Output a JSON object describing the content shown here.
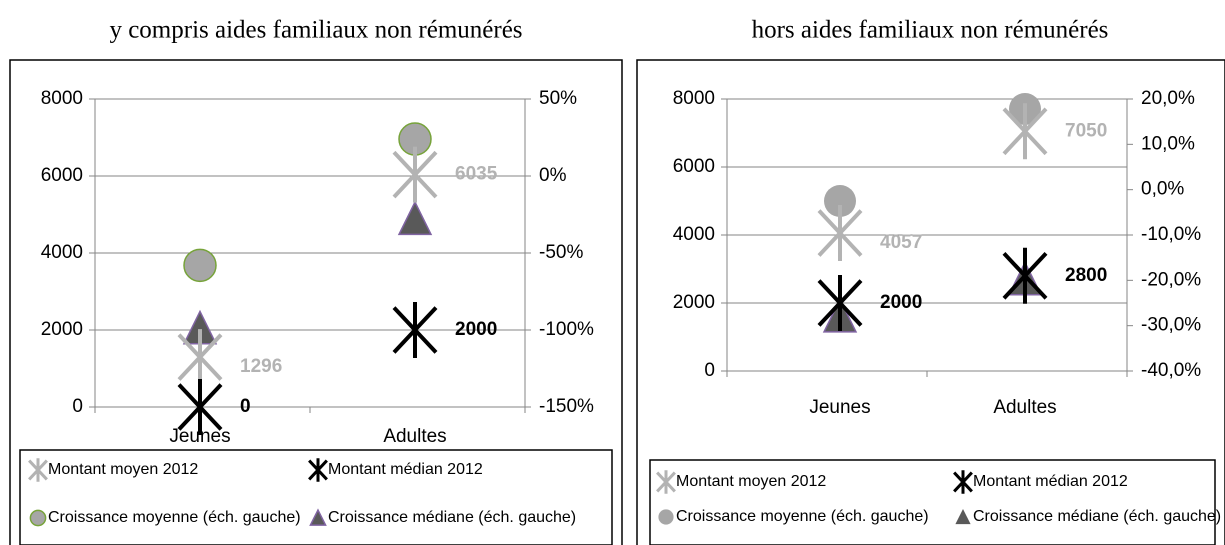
{
  "chart_data": [
    {
      "type": "scatter",
      "title": "y compris aides familiaux non rémunérés",
      "categories": [
        "Jeunes",
        "Adultes"
      ],
      "ylim": [
        0,
        8000
      ],
      "yticks": [
        0,
        2000,
        4000,
        6000,
        8000
      ],
      "y2lim": [
        -150,
        50
      ],
      "y2ticks": [
        {
          "value": -150,
          "label": "-150%"
        },
        {
          "value": -100,
          "label": "-100%"
        },
        {
          "value": -50,
          "label": "-50%"
        },
        {
          "value": 0,
          "label": "0%"
        },
        {
          "value": 50,
          "label": "50%"
        }
      ],
      "grid": true,
      "series": [
        {
          "name": "Croissance moyenne (éch. gauche)",
          "color": "#a6a6a6",
          "marker": "circle",
          "axis": "y2",
          "values": [
            -58,
            24
          ]
        },
        {
          "name": "Croissance médiane (éch. gauche)",
          "color": "#595959",
          "marker": "triangle",
          "axis": "y2",
          "values": [
            -99,
            -28
          ]
        },
        {
          "name": "Montant moyen 2012",
          "color": "#b3b3b3",
          "marker": "asterisk",
          "values": [
            1296,
            6035
          ]
        },
        {
          "name": "Montant médian 2012",
          "color": "#000000",
          "marker": "asterisk",
          "values": [
            0,
            2000
          ]
        }
      ]
    },
    {
      "type": "scatter",
      "title": "hors aides familiaux non rémunérés",
      "categories": [
        "Jeunes",
        "Adultes"
      ],
      "ylim": [
        0,
        8000
      ],
      "yticks": [
        0,
        2000,
        4000,
        6000,
        8000
      ],
      "y2lim": [
        -40,
        20
      ],
      "y2ticks": [
        {
          "value": -40,
          "label": "-40,0%"
        },
        {
          "value": -30,
          "label": "-30,0%"
        },
        {
          "value": -20,
          "label": "-20,0%"
        },
        {
          "value": -10,
          "label": "-10,0%"
        },
        {
          "value": 0,
          "label": "0,0%"
        },
        {
          "value": 10,
          "label": "10,0%"
        },
        {
          "value": 20,
          "label": "20,0%"
        }
      ],
      "grid": true,
      "series": [
        {
          "name": "Croissance moyenne (éch. gauche)",
          "color": "#a6a6a6",
          "marker": "circle",
          "axis": "y2",
          "values": [
            -2.5,
            17.8
          ]
        },
        {
          "name": "Croissance médiane (éch. gauche)",
          "color": "#595959",
          "marker": "triangle",
          "axis": "y2",
          "values": [
            -28,
            -19.8
          ]
        },
        {
          "name": "Montant moyen 2012",
          "color": "#b3b3b3",
          "marker": "asterisk",
          "values": [
            4057,
            7050
          ]
        },
        {
          "name": "Montant médian 2012",
          "color": "#000000",
          "marker": "asterisk",
          "values": [
            2000,
            2800
          ]
        }
      ]
    }
  ]
}
